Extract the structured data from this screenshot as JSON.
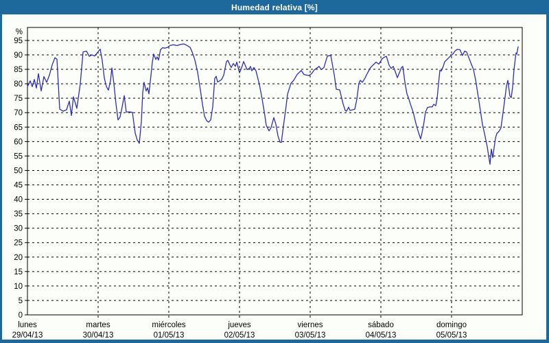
{
  "window": {
    "title": "Humedad relativa [%]"
  },
  "colors": {
    "frame": "#1E699B",
    "panel_bg": "#FCFEFA",
    "grid": "#000000",
    "line": "#2B2BBB",
    "title_text": "#FFFFFF"
  },
  "chart_data": {
    "type": "line",
    "title": "Humedad relativa [%]",
    "ylabel": "%",
    "y_top_label": "%",
    "ylim": [
      0,
      99.5
    ],
    "ytick_step": 5,
    "ytick_min": 0,
    "ytick_max": 95,
    "grid": "dashed",
    "legend_position": "none",
    "x_days": [
      {
        "name": "lunes",
        "date": "29/04/13"
      },
      {
        "name": "martes",
        "date": "30/04/13"
      },
      {
        "name": "miércoles",
        "date": "01/05/13"
      },
      {
        "name": "jueves",
        "date": "02/05/13"
      },
      {
        "name": "viernes",
        "date": "03/05/13"
      },
      {
        "name": "sábado",
        "date": "04/05/13"
      },
      {
        "name": "domingo",
        "date": "05/05/13"
      }
    ],
    "x_unit": "days_from_monday_start",
    "series": [
      {
        "name": "Humedad relativa",
        "color": "#2B2BBB",
        "points": [
          [
            0.0,
            79
          ],
          [
            0.039,
            81
          ],
          [
            0.068,
            79
          ],
          [
            0.097,
            81.5
          ],
          [
            0.126,
            78.5
          ],
          [
            0.155,
            83.5
          ],
          [
            0.194,
            77.5
          ],
          [
            0.233,
            82.5
          ],
          [
            0.272,
            80.5
          ],
          [
            0.311,
            83
          ],
          [
            0.35,
            86.5
          ],
          [
            0.388,
            89
          ],
          [
            0.417,
            88.5
          ],
          [
            0.456,
            71.2
          ],
          [
            0.505,
            70.5
          ],
          [
            0.553,
            71
          ],
          [
            0.592,
            74
          ],
          [
            0.621,
            69
          ],
          [
            0.65,
            75.5
          ],
          [
            0.699,
            71.5
          ],
          [
            0.748,
            80
          ],
          [
            0.786,
            91
          ],
          [
            0.835,
            91.3
          ],
          [
            0.874,
            89.5
          ],
          [
            0.913,
            90
          ],
          [
            0.951,
            89.6
          ],
          [
            0.981,
            90.5
          ],
          [
            1.029,
            92
          ],
          [
            1.058,
            88
          ],
          [
            1.087,
            82
          ],
          [
            1.117,
            79
          ],
          [
            1.146,
            77.8
          ],
          [
            1.175,
            81
          ],
          [
            1.194,
            85.5
          ],
          [
            1.223,
            80
          ],
          [
            1.252,
            73
          ],
          [
            1.282,
            67.5
          ],
          [
            1.311,
            68.5
          ],
          [
            1.34,
            72
          ],
          [
            1.369,
            75.9
          ],
          [
            1.398,
            70.2
          ],
          [
            1.437,
            70.3
          ],
          [
            1.485,
            70.1
          ],
          [
            1.524,
            62.9
          ],
          [
            1.553,
            60.5
          ],
          [
            1.583,
            59.4
          ],
          [
            1.612,
            67
          ],
          [
            1.631,
            77
          ],
          [
            1.65,
            80.5
          ],
          [
            1.68,
            77.5
          ],
          [
            1.699,
            78.6
          ],
          [
            1.718,
            76.5
          ],
          [
            1.748,
            83
          ],
          [
            1.767,
            87.5
          ],
          [
            1.786,
            90.3
          ],
          [
            1.816,
            88.4
          ],
          [
            1.835,
            89.3
          ],
          [
            1.854,
            88.2
          ],
          [
            1.883,
            91.8
          ],
          [
            1.913,
            92.5
          ],
          [
            1.942,
            92.3
          ],
          [
            1.981,
            92.6
          ],
          [
            2.019,
            93.3
          ],
          [
            2.068,
            93.5
          ],
          [
            2.117,
            93.2
          ],
          [
            2.165,
            93.6
          ],
          [
            2.214,
            93.8
          ],
          [
            2.252,
            93.3
          ],
          [
            2.301,
            92.6
          ],
          [
            2.33,
            91
          ],
          [
            2.369,
            88.2
          ],
          [
            2.408,
            84
          ],
          [
            2.447,
            77.8
          ],
          [
            2.476,
            73
          ],
          [
            2.505,
            68.8
          ],
          [
            2.534,
            67.3
          ],
          [
            2.563,
            66.7
          ],
          [
            2.592,
            67.5
          ],
          [
            2.621,
            72
          ],
          [
            2.65,
            81.8
          ],
          [
            2.67,
            82.6
          ],
          [
            2.689,
            80.6
          ],
          [
            2.718,
            81
          ],
          [
            2.748,
            81.5
          ],
          [
            2.777,
            83
          ],
          [
            2.816,
            87.7
          ],
          [
            2.835,
            88.1
          ],
          [
            2.864,
            86.5
          ],
          [
            2.883,
            85.6
          ],
          [
            2.913,
            87
          ],
          [
            2.942,
            86
          ],
          [
            2.961,
            87.5
          ],
          [
            3.0,
            83.8
          ],
          [
            3.029,
            85.5
          ],
          [
            3.058,
            87.7
          ],
          [
            3.087,
            86
          ],
          [
            3.107,
            84.9
          ],
          [
            3.136,
            85.3
          ],
          [
            3.155,
            86
          ],
          [
            3.175,
            84.5
          ],
          [
            3.204,
            85.6
          ],
          [
            3.233,
            84.5
          ],
          [
            3.282,
            79.7
          ],
          [
            3.32,
            74.7
          ],
          [
            3.35,
            70.3
          ],
          [
            3.379,
            65.6
          ],
          [
            3.417,
            63.7
          ],
          [
            3.447,
            64.8
          ],
          [
            3.485,
            68.3
          ],
          [
            3.515,
            66
          ],
          [
            3.544,
            62
          ],
          [
            3.573,
            59.8
          ],
          [
            3.592,
            59.7
          ],
          [
            3.621,
            65.3
          ],
          [
            3.66,
            72.4
          ],
          [
            3.68,
            76.4
          ],
          [
            3.728,
            80.2
          ],
          [
            3.767,
            81.2
          ],
          [
            3.816,
            83.2
          ],
          [
            3.874,
            84.6
          ],
          [
            3.913,
            83.2
          ],
          [
            3.951,
            83
          ],
          [
            3.981,
            82.8
          ],
          [
            4.019,
            83.5
          ],
          [
            4.058,
            84.8
          ],
          [
            4.126,
            86
          ],
          [
            4.155,
            84.9
          ],
          [
            4.194,
            85.6
          ],
          [
            4.243,
            89.6
          ],
          [
            4.291,
            89.8
          ],
          [
            4.34,
            83.2
          ],
          [
            4.369,
            78.1
          ],
          [
            4.417,
            77.9
          ],
          [
            4.466,
            73
          ],
          [
            4.495,
            70.8
          ],
          [
            4.515,
            70.5
          ],
          [
            4.544,
            71.9
          ],
          [
            4.563,
            70.8
          ],
          [
            4.602,
            71
          ],
          [
            4.631,
            71.2
          ],
          [
            4.66,
            74.7
          ],
          [
            4.689,
            80.2
          ],
          [
            4.709,
            81.2
          ],
          [
            4.738,
            80.5
          ],
          [
            4.777,
            82
          ],
          [
            4.806,
            83.5
          ],
          [
            4.854,
            85.6
          ],
          [
            4.903,
            86.8
          ],
          [
            4.932,
            87.5
          ],
          [
            4.971,
            86.8
          ],
          [
            5.019,
            88.7
          ],
          [
            5.049,
            89.2
          ],
          [
            5.078,
            89.5
          ],
          [
            5.117,
            86.4
          ],
          [
            5.146,
            85.3
          ],
          [
            5.175,
            86
          ],
          [
            5.194,
            84.9
          ],
          [
            5.233,
            82.1
          ],
          [
            5.291,
            85.6
          ],
          [
            5.311,
            86
          ],
          [
            5.34,
            80.5
          ],
          [
            5.369,
            76.5
          ],
          [
            5.388,
            75.3
          ],
          [
            5.417,
            73
          ],
          [
            5.456,
            70.2
          ],
          [
            5.505,
            65.4
          ],
          [
            5.534,
            63
          ],
          [
            5.563,
            60.9
          ],
          [
            5.602,
            65.4
          ],
          [
            5.631,
            70.2
          ],
          [
            5.66,
            71.8
          ],
          [
            5.699,
            72
          ],
          [
            5.728,
            72
          ],
          [
            5.748,
            72.9
          ],
          [
            5.777,
            72.4
          ],
          [
            5.796,
            75
          ],
          [
            5.816,
            80
          ],
          [
            5.835,
            84.7
          ],
          [
            5.854,
            84.4
          ],
          [
            5.883,
            86
          ],
          [
            5.903,
            87.6
          ],
          [
            5.951,
            88.8
          ],
          [
            5.981,
            89.5
          ],
          [
            6.019,
            90.3
          ],
          [
            6.049,
            91.3
          ],
          [
            6.078,
            91.9
          ],
          [
            6.117,
            91.8
          ],
          [
            6.155,
            89.8
          ],
          [
            6.184,
            91.3
          ],
          [
            6.214,
            91
          ],
          [
            6.252,
            88.5
          ],
          [
            6.311,
            84.9
          ],
          [
            6.34,
            81.4
          ],
          [
            6.388,
            73.9
          ],
          [
            6.437,
            66
          ],
          [
            6.466,
            62.8
          ],
          [
            6.505,
            58.2
          ],
          [
            6.524,
            55.1
          ],
          [
            6.544,
            52.1
          ],
          [
            6.563,
            57.4
          ],
          [
            6.583,
            54.4
          ],
          [
            6.621,
            61.2
          ],
          [
            6.641,
            62.8
          ],
          [
            6.67,
            63.5
          ],
          [
            6.699,
            64.7
          ],
          [
            6.728,
            70
          ],
          [
            6.757,
            75.4
          ],
          [
            6.777,
            79.2
          ],
          [
            6.796,
            81.2
          ],
          [
            6.825,
            75.8
          ],
          [
            6.845,
            75.2
          ],
          [
            6.864,
            78.9
          ],
          [
            6.883,
            84.6
          ],
          [
            6.903,
            88.9
          ],
          [
            6.913,
            90.7
          ],
          [
            6.922,
            90.3
          ],
          [
            6.942,
            92.8
          ]
        ]
      }
    ]
  }
}
